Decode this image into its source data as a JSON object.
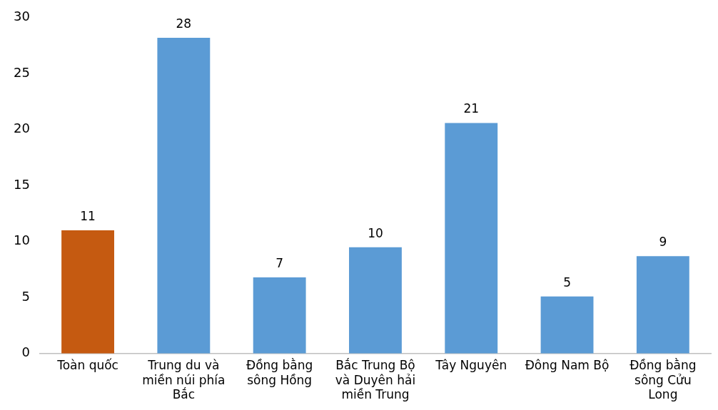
{
  "chart_data": {
    "type": "bar",
    "categories": [
      "Toàn quốc",
      "Trung du và miền núi phía Bắc",
      "Đồng bằng sông Hồng",
      "Bắc Trung Bộ và Duyên hải miền Trung",
      "Tây Nguyên",
      "Đông Nam Bộ",
      "Đồng bằng sông Cửu Long"
    ],
    "values": [
      11.0,
      28.2,
      6.8,
      9.5,
      20.6,
      5.1,
      8.7
    ],
    "value_labels": [
      "11",
      "28",
      "7",
      "10",
      "21",
      "5",
      "9"
    ],
    "colors": [
      "#c55a11",
      "#5b9bd5",
      "#5b9bd5",
      "#5b9bd5",
      "#5b9bd5",
      "#5b9bd5",
      "#5b9bd5"
    ],
    "ylim": [
      0,
      30
    ],
    "yticks": [
      0,
      5,
      10,
      15,
      20,
      25,
      30
    ],
    "grid": false,
    "legend": false
  }
}
